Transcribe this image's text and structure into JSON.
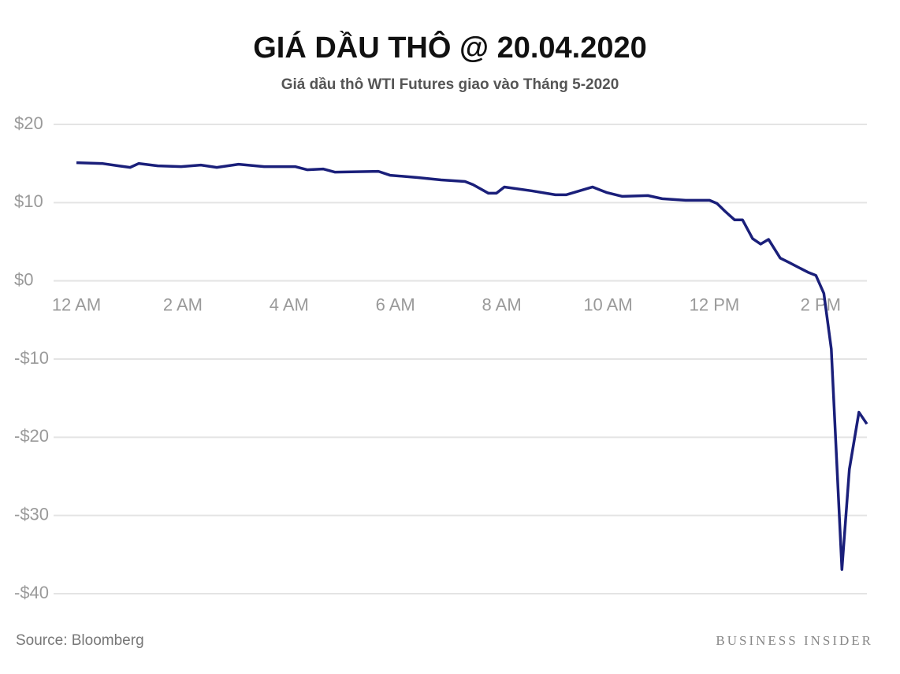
{
  "chart_data": {
    "type": "line",
    "title": "GIÁ DẦU THÔ @ 20.04.2020",
    "subtitle": "Giá dầu thô WTI Futures  giao vào Tháng 5-2020",
    "source": "Source: Bloomberg",
    "brand": "BUSINESS INSIDER",
    "color": "#1a1f7a",
    "grid": true,
    "x": [
      0,
      0.49,
      0.79,
      1.01,
      1.17,
      1.53,
      1.97,
      2.34,
      2.64,
      3.05,
      3.53,
      4.12,
      4.34,
      4.64,
      4.86,
      5.68,
      5.9,
      6.42,
      6.86,
      7.31,
      7.46,
      7.75,
      7.9,
      8.05,
      8.57,
      9.01,
      9.21,
      9.71,
      9.97,
      10.27,
      10.75,
      11.02,
      11.46,
      11.91,
      12.05,
      12.2,
      12.38,
      12.53,
      12.72,
      12.87,
      13.02,
      13.24,
      13.39,
      13.76,
      13.91,
      14.06,
      14.2,
      14.4,
      14.54,
      14.72,
      14.87
    ],
    "values": [
      15.1,
      15.0,
      14.7,
      14.5,
      15.0,
      14.7,
      14.6,
      14.8,
      14.5,
      14.9,
      14.6,
      14.6,
      14.2,
      14.3,
      13.9,
      14.0,
      13.5,
      13.2,
      12.9,
      12.7,
      12.3,
      11.2,
      11.2,
      12.0,
      11.5,
      11.0,
      11.0,
      12.0,
      11.3,
      10.8,
      10.9,
      10.5,
      10.3,
      10.3,
      9.9,
      8.9,
      7.8,
      7.8,
      5.4,
      4.7,
      5.3,
      2.9,
      2.4,
      1.1,
      0.7,
      -1.6,
      -8.7,
      -36.9,
      -24.1,
      -16.8,
      -18.3
    ],
    "xlim": [
      0,
      14.87
    ],
    "xticks": [
      {
        "value": 0,
        "label": "12 AM"
      },
      {
        "value": 2,
        "label": "2 AM"
      },
      {
        "value": 4,
        "label": "4 AM"
      },
      {
        "value": 6,
        "label": "6 AM"
      },
      {
        "value": 8,
        "label": "8 AM"
      },
      {
        "value": 10,
        "label": "10 AM"
      },
      {
        "value": 12,
        "label": "12 PM"
      },
      {
        "value": 14,
        "label": "2 PM"
      }
    ],
    "ylim": [
      -40,
      20
    ],
    "yticks": [
      {
        "value": 20,
        "label": "$20"
      },
      {
        "value": 10,
        "label": "$10"
      },
      {
        "value": 0,
        "label": "$0"
      },
      {
        "value": -10,
        "label": "-$10"
      },
      {
        "value": -20,
        "label": "-$20"
      },
      {
        "value": -30,
        "label": "-$30"
      },
      {
        "value": -40,
        "label": "-$40"
      }
    ]
  }
}
